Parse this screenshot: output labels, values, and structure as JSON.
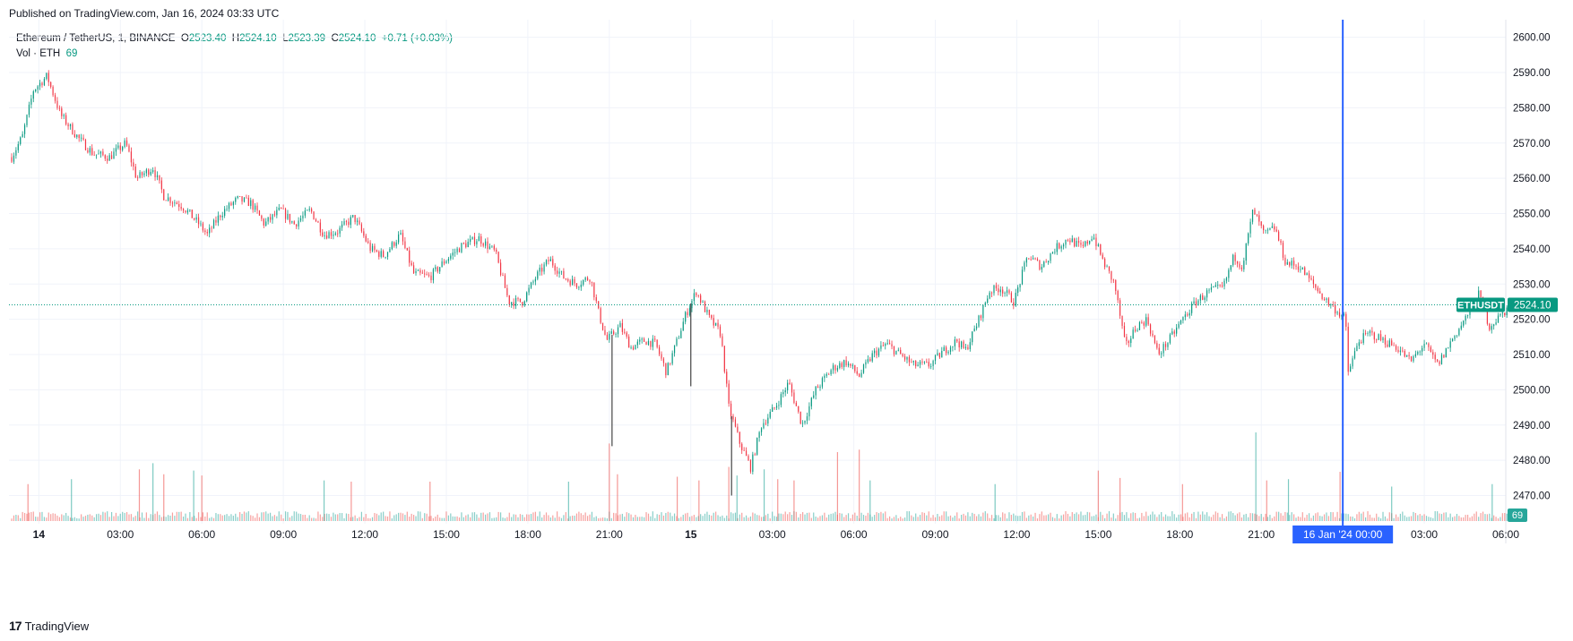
{
  "header": {
    "published": "Published on TradingView.com, Jan 16, 2024 03:33 UTC"
  },
  "legend": {
    "symbol": "Ethereum / TetherUS, 1, BINANCE",
    "o_label": "O",
    "o_value": "2523.40",
    "h_label": "H",
    "h_value": "2524.10",
    "l_label": "L",
    "l_value": "2523.39",
    "c_label": "C",
    "c_value": "2524.10",
    "change": "+0.71 (+0.03%)",
    "vol_label": "Vol · ETH",
    "vol_value": "69"
  },
  "footer": {
    "brand": "TradingView",
    "logo_glyph": "17"
  },
  "colors": {
    "up": "#089981",
    "down": "#f23645",
    "crosshair": "#2962ff",
    "grid": "#f0f3fa",
    "text": "#131722"
  },
  "chart_data": {
    "type": "candlestick",
    "symbol": "ETHUSDT",
    "interval": "1",
    "exchange": "BINANCE",
    "last_price": 2524.1,
    "last_price_label": "2524.10",
    "last_volume": 69,
    "last_volume_label": "69",
    "ylim": [
      2462,
      2605
    ],
    "y_ticks": [
      2470,
      2480,
      2490,
      2500,
      2510,
      2520,
      2530,
      2540,
      2550,
      2560,
      2570,
      2580,
      2590,
      2600
    ],
    "y_tick_labels": [
      "2470.00",
      "2480.00",
      "2490.00",
      "2500.00",
      "2510.00",
      "2520.00",
      "2530.00",
      "2540.00",
      "2550.00",
      "2560.00",
      "2570.00",
      "2580.00",
      "2590.00",
      "2600.00"
    ],
    "x_unit": "hours since Jan 14 00:00 UTC",
    "xlim": [
      -1.1,
      54.0
    ],
    "x_ticks": [
      {
        "h": 0,
        "label": "14",
        "bold": true
      },
      {
        "h": 3,
        "label": "03:00"
      },
      {
        "h": 6,
        "label": "06:00"
      },
      {
        "h": 9,
        "label": "09:00"
      },
      {
        "h": 12,
        "label": "12:00"
      },
      {
        "h": 15,
        "label": "15:00"
      },
      {
        "h": 18,
        "label": "18:00"
      },
      {
        "h": 21,
        "label": "21:00"
      },
      {
        "h": 24,
        "label": "15",
        "bold": true
      },
      {
        "h": 27,
        "label": "03:00"
      },
      {
        "h": 30,
        "label": "06:00"
      },
      {
        "h": 33,
        "label": "09:00"
      },
      {
        "h": 36,
        "label": "12:00"
      },
      {
        "h": 39,
        "label": "15:00"
      },
      {
        "h": 42,
        "label": "18:00"
      },
      {
        "h": 45,
        "label": "21:00"
      },
      {
        "h": 51,
        "label": "03:00"
      },
      {
        "h": 54,
        "label": "06:00"
      }
    ],
    "crosshair_x": 48,
    "crosshair_label": "16 Jan '24   00:00",
    "price_path": [
      [
        -1.0,
        2566
      ],
      [
        -0.6,
        2572
      ],
      [
        -0.2,
        2585
      ],
      [
        0.3,
        2589
      ],
      [
        0.8,
        2578
      ],
      [
        1.5,
        2571
      ],
      [
        2.0,
        2567
      ],
      [
        2.6,
        2566
      ],
      [
        3.2,
        2570
      ],
      [
        3.6,
        2560
      ],
      [
        4.2,
        2563
      ],
      [
        4.6,
        2555
      ],
      [
        5.3,
        2552
      ],
      [
        5.9,
        2547
      ],
      [
        6.2,
        2544
      ],
      [
        6.7,
        2550
      ],
      [
        7.3,
        2554
      ],
      [
        7.8,
        2553
      ],
      [
        8.3,
        2547
      ],
      [
        8.9,
        2551
      ],
      [
        9.4,
        2547
      ],
      [
        10.0,
        2551
      ],
      [
        10.5,
        2544
      ],
      [
        11.0,
        2545
      ],
      [
        11.6,
        2549
      ],
      [
        12.2,
        2540
      ],
      [
        12.7,
        2538
      ],
      [
        13.3,
        2544
      ],
      [
        13.8,
        2533
      ],
      [
        14.4,
        2532
      ],
      [
        15.0,
        2537
      ],
      [
        15.6,
        2541
      ],
      [
        16.2,
        2543
      ],
      [
        16.8,
        2539
      ],
      [
        17.3,
        2525
      ],
      [
        17.8,
        2525
      ],
      [
        18.3,
        2532
      ],
      [
        18.8,
        2537
      ],
      [
        19.3,
        2532
      ],
      [
        19.8,
        2530
      ],
      [
        20.3,
        2532
      ],
      [
        20.6,
        2522
      ],
      [
        20.9,
        2514
      ],
      [
        21.4,
        2518
      ],
      [
        21.8,
        2512
      ],
      [
        22.3,
        2514
      ],
      [
        22.7,
        2513
      ],
      [
        23.1,
        2505
      ],
      [
        23.5,
        2514
      ],
      [
        23.8,
        2521
      ],
      [
        24.2,
        2528
      ],
      [
        24.7,
        2520
      ],
      [
        25.1,
        2516
      ],
      [
        25.4,
        2495
      ],
      [
        25.8,
        2485
      ],
      [
        26.2,
        2478
      ],
      [
        26.6,
        2490
      ],
      [
        27.1,
        2495
      ],
      [
        27.6,
        2502
      ],
      [
        28.1,
        2490
      ],
      [
        28.6,
        2500
      ],
      [
        29.2,
        2506
      ],
      [
        29.7,
        2508
      ],
      [
        30.2,
        2504
      ],
      [
        30.7,
        2510
      ],
      [
        31.2,
        2513
      ],
      [
        31.7,
        2510
      ],
      [
        32.2,
        2507
      ],
      [
        32.8,
        2507
      ],
      [
        33.3,
        2511
      ],
      [
        33.8,
        2514
      ],
      [
        34.1,
        2511
      ],
      [
        34.5,
        2518
      ],
      [
        35.0,
        2528
      ],
      [
        35.4,
        2529
      ],
      [
        35.9,
        2525
      ],
      [
        36.4,
        2538
      ],
      [
        36.9,
        2535
      ],
      [
        37.4,
        2540
      ],
      [
        37.9,
        2543
      ],
      [
        38.4,
        2540
      ],
      [
        38.8,
        2544
      ],
      [
        39.2,
        2536
      ],
      [
        39.6,
        2530
      ],
      [
        40.0,
        2512
      ],
      [
        40.4,
        2518
      ],
      [
        40.8,
        2520
      ],
      [
        41.2,
        2510
      ],
      [
        41.6,
        2514
      ],
      [
        42.1,
        2520
      ],
      [
        42.6,
        2525
      ],
      [
        43.1,
        2528
      ],
      [
        43.6,
        2529
      ],
      [
        44.0,
        2538
      ],
      [
        44.3,
        2535
      ],
      [
        44.7,
        2551
      ],
      [
        45.1,
        2544
      ],
      [
        45.5,
        2546
      ],
      [
        45.9,
        2536
      ],
      [
        46.4,
        2535
      ],
      [
        46.9,
        2530
      ],
      [
        47.3,
        2526
      ],
      [
        47.7,
        2523
      ],
      [
        48.1,
        2520
      ],
      [
        48.2,
        2505
      ],
      [
        48.6,
        2514
      ],
      [
        49.0,
        2516
      ],
      [
        49.5,
        2514
      ],
      [
        50.0,
        2512
      ],
      [
        50.5,
        2508
      ],
      [
        51.0,
        2513
      ],
      [
        51.5,
        2507
      ],
      [
        52.0,
        2514
      ],
      [
        52.5,
        2520
      ],
      [
        53.0,
        2527
      ],
      [
        53.4,
        2518
      ],
      [
        53.8,
        2521
      ],
      [
        54.2,
        2524.1
      ]
    ],
    "spike_lows": [
      {
        "h": 21.1,
        "price": 2484
      },
      {
        "h": 25.5,
        "price": 2470
      },
      {
        "h": 24.0,
        "price": 2501
      }
    ],
    "volume": {
      "max_volume": 800,
      "spikes": [
        {
          "h": -0.4,
          "v": 300,
          "dir": "down"
        },
        {
          "h": 1.2,
          "v": 340,
          "dir": "up"
        },
        {
          "h": 3.7,
          "v": 420,
          "dir": "down"
        },
        {
          "h": 4.2,
          "v": 470,
          "dir": "up"
        },
        {
          "h": 4.6,
          "v": 380,
          "dir": "down"
        },
        {
          "h": 5.7,
          "v": 410,
          "dir": "up"
        },
        {
          "h": 6.0,
          "v": 370,
          "dir": "down"
        },
        {
          "h": 10.5,
          "v": 330,
          "dir": "up"
        },
        {
          "h": 11.5,
          "v": 320,
          "dir": "down"
        },
        {
          "h": 14.4,
          "v": 320,
          "dir": "down"
        },
        {
          "h": 19.5,
          "v": 320,
          "dir": "up"
        },
        {
          "h": 21.0,
          "v": 630,
          "dir": "down"
        },
        {
          "h": 21.3,
          "v": 380,
          "dir": "down"
        },
        {
          "h": 23.5,
          "v": 360,
          "dir": "down"
        },
        {
          "h": 24.3,
          "v": 330,
          "dir": "down"
        },
        {
          "h": 25.4,
          "v": 440,
          "dir": "down"
        },
        {
          "h": 25.7,
          "v": 370,
          "dir": "up"
        },
        {
          "h": 26.7,
          "v": 420,
          "dir": "up"
        },
        {
          "h": 27.2,
          "v": 340,
          "dir": "down"
        },
        {
          "h": 27.8,
          "v": 330,
          "dir": "down"
        },
        {
          "h": 29.4,
          "v": 560,
          "dir": "down"
        },
        {
          "h": 30.2,
          "v": 580,
          "dir": "down"
        },
        {
          "h": 30.6,
          "v": 330,
          "dir": "up"
        },
        {
          "h": 35.2,
          "v": 300,
          "dir": "up"
        },
        {
          "h": 39.0,
          "v": 410,
          "dir": "down"
        },
        {
          "h": 39.8,
          "v": 350,
          "dir": "down"
        },
        {
          "h": 42.1,
          "v": 300,
          "dir": "down"
        },
        {
          "h": 44.8,
          "v": 720,
          "dir": "up"
        },
        {
          "h": 45.2,
          "v": 330,
          "dir": "down"
        },
        {
          "h": 46.0,
          "v": 340,
          "dir": "up"
        },
        {
          "h": 47.9,
          "v": 400,
          "dir": "down"
        },
        {
          "h": 48.0,
          "v": 290,
          "dir": "up"
        },
        {
          "h": 49.8,
          "v": 280,
          "dir": "up"
        },
        {
          "h": 53.5,
          "v": 300,
          "dir": "up"
        }
      ]
    }
  }
}
